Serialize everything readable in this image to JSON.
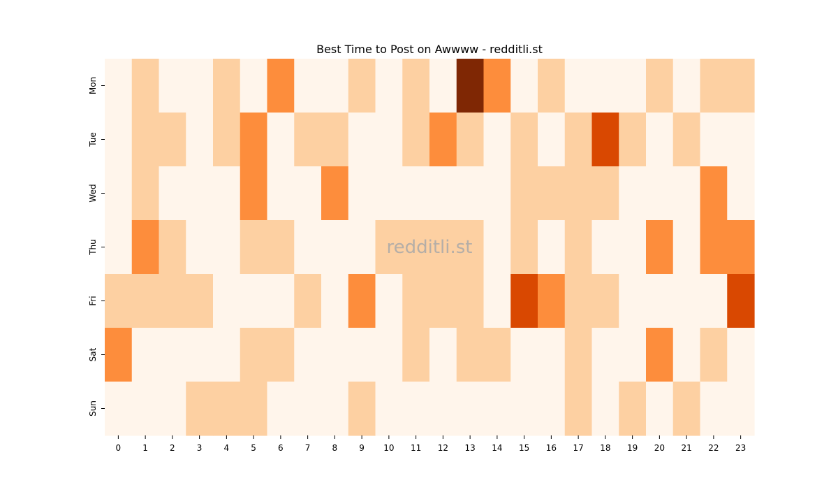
{
  "chart_data": {
    "type": "heatmap",
    "title": "Best Time to Post on Awwww - redditli.st",
    "xlabel": "",
    "ylabel": "",
    "x_categories": [
      "0",
      "1",
      "2",
      "3",
      "4",
      "5",
      "6",
      "7",
      "8",
      "9",
      "10",
      "11",
      "12",
      "13",
      "14",
      "15",
      "16",
      "17",
      "18",
      "19",
      "20",
      "21",
      "22",
      "23"
    ],
    "y_categories": [
      "Mon",
      "Tue",
      "Wed",
      "Thu",
      "Fri",
      "Sat",
      "Sun"
    ],
    "values": [
      [
        0,
        1,
        0,
        0,
        1,
        0,
        2,
        0,
        0,
        1,
        0,
        1,
        0,
        4,
        2,
        0,
        1,
        0,
        0,
        0,
        1,
        0,
        1,
        1
      ],
      [
        0,
        1,
        1,
        0,
        1,
        2,
        0,
        1,
        1,
        0,
        0,
        1,
        2,
        1,
        0,
        1,
        0,
        1,
        3,
        1,
        0,
        1,
        0,
        0
      ],
      [
        0,
        1,
        0,
        0,
        0,
        2,
        0,
        0,
        2,
        0,
        0,
        0,
        0,
        0,
        0,
        1,
        1,
        1,
        1,
        0,
        0,
        0,
        2,
        0
      ],
      [
        0,
        2,
        1,
        0,
        0,
        1,
        1,
        0,
        0,
        0,
        1,
        1,
        1,
        1,
        0,
        1,
        0,
        1,
        0,
        0,
        2,
        0,
        2,
        2
      ],
      [
        1,
        1,
        1,
        1,
        0,
        0,
        0,
        1,
        0,
        2,
        0,
        1,
        1,
        1,
        0,
        3,
        2,
        1,
        1,
        0,
        0,
        0,
        0,
        3
      ],
      [
        2,
        0,
        0,
        0,
        0,
        1,
        1,
        0,
        0,
        0,
        0,
        1,
        0,
        1,
        1,
        0,
        0,
        1,
        0,
        0,
        2,
        0,
        1,
        0
      ],
      [
        0,
        0,
        0,
        1,
        1,
        1,
        0,
        0,
        0,
        1,
        0,
        0,
        0,
        0,
        0,
        0,
        0,
        1,
        0,
        1,
        0,
        1,
        0,
        0
      ]
    ],
    "color_levels": [
      "#fff5eb",
      "#fdd0a2",
      "#fd8d3c",
      "#d94801",
      "#7f2704"
    ],
    "colormap": "Oranges",
    "watermark": "redditli.st",
    "colorbar": false
  }
}
